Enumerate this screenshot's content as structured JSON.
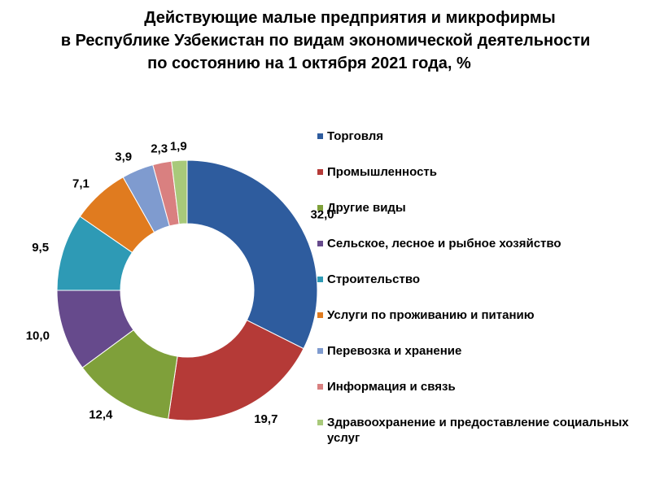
{
  "chart_data": {
    "type": "pie",
    "donut": true,
    "title_lines": [
      "Действующие малые предприятия и микрофирмы",
      "в Республике Узбекистан по видам экономической деятельности",
      "по состоянию на 1 октября 2021 года, %"
    ],
    "legend_position": "right",
    "categories": [
      "Торговля",
      "Промышленность",
      "Другие виды",
      "Сельское, лесное и рыбное хозяйство",
      "Строительство",
      "Услуги по проживанию и питанию",
      "Перевозка и хранение",
      "Информация и связь",
      "Здравоохранение и предоставление социальных услуг"
    ],
    "values": [
      32.0,
      19.7,
      12.4,
      10.0,
      9.5,
      7.1,
      3.9,
      2.3,
      1.9
    ],
    "value_labels": [
      "32,0",
      "19,7",
      "12,4",
      "10,0",
      "9,5",
      "7,1",
      "3,9",
      "2,3",
      "1,9"
    ],
    "colors": [
      "#2E5C9E",
      "#B53A37",
      "#7FA03A",
      "#664A8C",
      "#2E9AB5",
      "#E07B1F",
      "#7F9BCF",
      "#D98080",
      "#A8C97A"
    ]
  }
}
